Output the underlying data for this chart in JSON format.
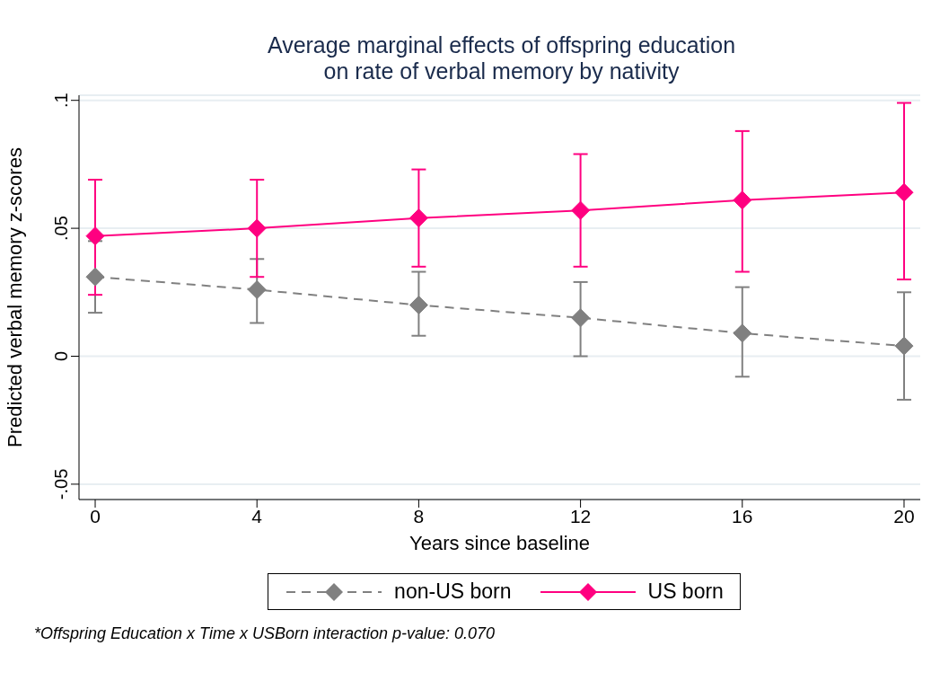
{
  "chart_data": {
    "type": "line",
    "title": "Average marginal effects of offspring education\non rate of verbal memory by nativity",
    "xlabel": "Years since baseline",
    "ylabel": "Predicted verbal memory z-scores",
    "x": [
      0,
      4,
      8,
      12,
      16,
      20
    ],
    "series": [
      {
        "name": "non-US born",
        "color": "#808080",
        "line_style": "dashed",
        "values": [
          0.031,
          0.026,
          0.02,
          0.015,
          0.009,
          0.004
        ],
        "errors": [
          [
            0.017,
            0.045
          ],
          [
            0.013,
            0.038
          ],
          [
            0.008,
            0.033
          ],
          [
            0.0,
            0.029
          ],
          [
            -0.008,
            0.027
          ],
          [
            -0.017,
            0.025
          ]
        ]
      },
      {
        "name": "US born",
        "color": "#ff0080",
        "line_style": "solid",
        "values": [
          0.047,
          0.05,
          0.054,
          0.057,
          0.061,
          0.064
        ],
        "errors": [
          [
            0.024,
            0.069
          ],
          [
            0.031,
            0.069
          ],
          [
            0.035,
            0.073
          ],
          [
            0.035,
            0.079
          ],
          [
            0.033,
            0.088
          ],
          [
            0.03,
            0.099
          ]
        ]
      }
    ],
    "marker": "diamond",
    "xlim": [
      -0.4,
      20.4
    ],
    "xticks": [
      0,
      4,
      8,
      12,
      16,
      20
    ],
    "ylim": [
      -0.056,
      0.102
    ],
    "yticks": [
      {
        "value": -0.05,
        "label": "-.05"
      },
      {
        "value": 0,
        "label": "0"
      },
      {
        "value": 0.05,
        "label": ".05"
      },
      {
        "value": 0.1,
        "label": ".1"
      }
    ],
    "grid": "y",
    "legend": "bottom",
    "annotations": [
      "*Offspring Education x Time x USBorn interaction p-value: 0.070"
    ]
  }
}
